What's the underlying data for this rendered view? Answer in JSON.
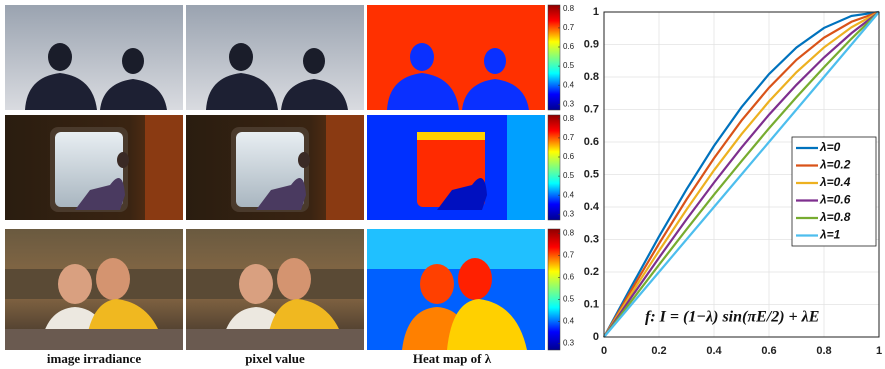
{
  "figure": {
    "captions": [
      "image irradiance",
      "pixel value",
      "Heat map of λ"
    ],
    "colorbars": [
      {
        "clim": [
          0.27,
          0.82
        ],
        "ticks": [
          0.3,
          0.4,
          0.5,
          0.6,
          0.7,
          0.8
        ]
      },
      {
        "clim": [
          0.27,
          0.82
        ],
        "ticks": [
          0.3,
          0.4,
          0.5,
          0.6,
          0.7,
          0.8
        ]
      },
      {
        "clim": [
          0.27,
          0.82
        ],
        "ticks": [
          0.3,
          0.4,
          0.5,
          0.6,
          0.7,
          0.8
        ]
      }
    ]
  },
  "chart_data": {
    "type": "line",
    "annotation": "f: I = (1−λ) sin(πE/2) + λE",
    "x": [
      0,
      0.1,
      0.2,
      0.3,
      0.4,
      0.5,
      0.6,
      0.7,
      0.8,
      0.9,
      1
    ],
    "series": [
      {
        "name": "λ=0",
        "color": "#0072bd",
        "values": [
          0,
          0.156,
          0.309,
          0.454,
          0.588,
          0.707,
          0.809,
          0.891,
          0.951,
          0.988,
          1
        ]
      },
      {
        "name": "λ=0.2",
        "color": "#d95319",
        "values": [
          0,
          0.145,
          0.287,
          0.423,
          0.55,
          0.666,
          0.767,
          0.853,
          0.921,
          0.97,
          1
        ]
      },
      {
        "name": "λ=0.4",
        "color": "#edb120",
        "values": [
          0,
          0.134,
          0.265,
          0.392,
          0.513,
          0.624,
          0.725,
          0.815,
          0.891,
          0.953,
          1
        ]
      },
      {
        "name": "λ=0.6",
        "color": "#7e2f8e",
        "values": [
          0,
          0.123,
          0.244,
          0.362,
          0.475,
          0.583,
          0.684,
          0.776,
          0.86,
          0.935,
          1
        ]
      },
      {
        "name": "λ=0.8",
        "color": "#77ac30",
        "values": [
          0,
          0.111,
          0.222,
          0.331,
          0.438,
          0.541,
          0.642,
          0.738,
          0.83,
          0.918,
          1
        ]
      },
      {
        "name": "λ=1",
        "color": "#4dbeee",
        "values": [
          0,
          0.1,
          0.2,
          0.3,
          0.4,
          0.5,
          0.6,
          0.7,
          0.8,
          0.9,
          1
        ]
      }
    ],
    "xlim": [
      0,
      1
    ],
    "ylim": [
      0,
      1
    ],
    "xticks": [
      0,
      0.2,
      0.4,
      0.6,
      0.8,
      1
    ],
    "yticks": [
      0,
      0.1,
      0.2,
      0.3,
      0.4,
      0.5,
      0.6,
      0.7,
      0.8,
      0.9,
      1
    ],
    "grid": true,
    "legend": "right"
  }
}
